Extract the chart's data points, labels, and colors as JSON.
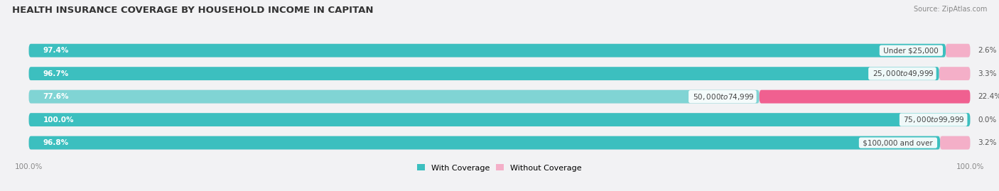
{
  "title": "HEALTH INSURANCE COVERAGE BY HOUSEHOLD INCOME IN CAPITAN",
  "source": "Source: ZipAtlas.com",
  "categories": [
    "Under $25,000",
    "$25,000 to $49,999",
    "$50,000 to $74,999",
    "$75,000 to $99,999",
    "$100,000 and over"
  ],
  "with_coverage": [
    97.4,
    96.7,
    77.6,
    100.0,
    96.8
  ],
  "without_coverage": [
    2.6,
    3.3,
    22.4,
    0.0,
    3.2
  ],
  "color_with": "#3cbfbf",
  "color_without_strong": "#f06090",
  "color_without_light": "#f4afc8",
  "color_with_light": "#80d4d4",
  "bg_bar": "#e8e8ec",
  "title_fontsize": 9.5,
  "label_fontsize": 7.5,
  "tick_fontsize": 7.5,
  "legend_fontsize": 8
}
